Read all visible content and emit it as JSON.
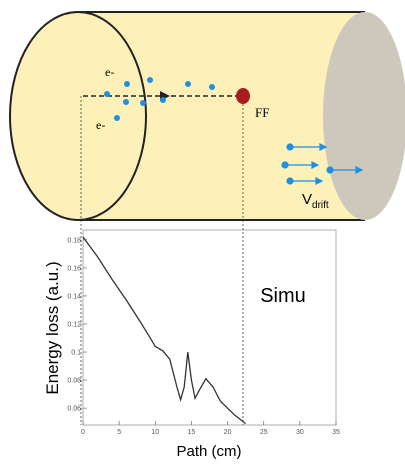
{
  "diagram": {
    "electron_labels": [
      "e-",
      "e-"
    ],
    "fission_fragment": "FF",
    "drift_label": "V",
    "drift_subscript": "drift",
    "simulation_label": "Simu"
  },
  "chart_data": {
    "type": "line",
    "x_label": "Path (cm)",
    "y_label": "Energy loss (a.u.)",
    "x": [
      0,
      2,
      4,
      6,
      8,
      10,
      11,
      12,
      13,
      13.5,
      14,
      14.5,
      15,
      15.5,
      16,
      17,
      18,
      19,
      20,
      21,
      22,
      22.5
    ],
    "values": [
      0.182,
      0.168,
      0.152,
      0.137,
      0.121,
      0.104,
      0.101,
      0.095,
      0.075,
      0.066,
      0.075,
      0.1,
      0.08,
      0.067,
      0.072,
      0.081,
      0.075,
      0.065,
      0.06,
      0.055,
      0.051,
      0.049
    ],
    "color": "#333333",
    "xlim": [
      0,
      35
    ],
    "xticks": [
      0,
      5,
      10,
      15,
      20,
      25,
      30,
      35
    ],
    "ylim": [
      0.048,
      0.187
    ],
    "yticks": [
      0.06,
      0.08,
      0.1,
      0.12,
      0.14,
      0.16,
      0.18
    ]
  }
}
